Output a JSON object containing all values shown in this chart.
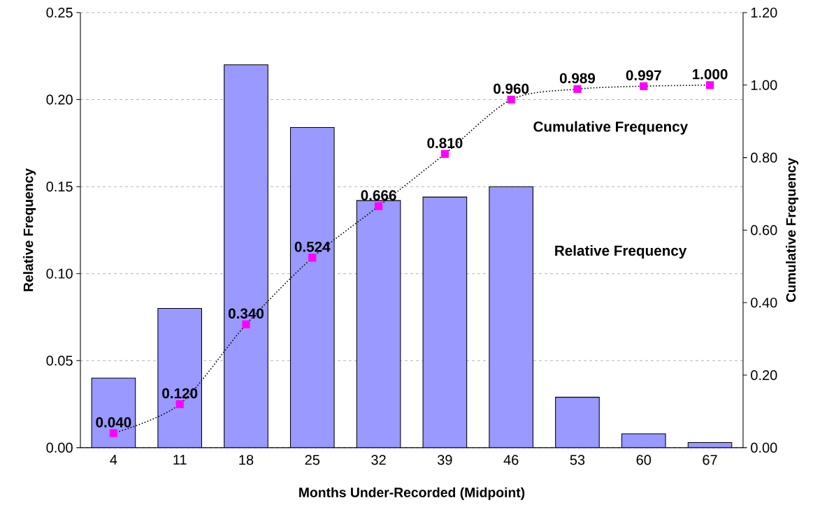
{
  "chart_data": {
    "type": "bar",
    "xlabel": "Months Under-Recorded (Midpoint)",
    "ylabel": "Relative Frequency",
    "y2label": "Cumulative Frequency",
    "categories": [
      "4",
      "11",
      "18",
      "25",
      "32",
      "39",
      "46",
      "53",
      "60",
      "67"
    ],
    "series": [
      {
        "name": "Relative Frequency",
        "color": "#9999ff",
        "values": [
          0.04,
          0.08,
          0.22,
          0.184,
          0.142,
          0.144,
          0.15,
          0.029,
          0.008,
          0.003
        ]
      },
      {
        "name": "Cumulative Frequency",
        "type": "line",
        "axis": "y2",
        "color": "#ff00ff",
        "marker": "square",
        "line_style": "dotted",
        "values": [
          0.04,
          0.12,
          0.34,
          0.524,
          0.666,
          0.81,
          0.96,
          0.989,
          0.997,
          1.0
        ],
        "value_labels": [
          "0.040",
          "0.120",
          "0.340",
          "0.524",
          "0.666",
          "0.810",
          "0.960",
          "0.989",
          "0.997",
          "1.000"
        ]
      }
    ],
    "ylim": [
      0,
      0.25
    ],
    "yticks": [
      {
        "value": 0,
        "label": "0.00"
      },
      {
        "value": 0.05,
        "label": "0.05"
      },
      {
        "value": 0.1,
        "label": "0.10"
      },
      {
        "value": 0.15,
        "label": "0.15"
      },
      {
        "value": 0.2,
        "label": "0.20"
      },
      {
        "value": 0.25,
        "label": "0.25"
      }
    ],
    "y2lim": [
      0,
      1.2
    ],
    "y2ticks": [
      {
        "value": 0,
        "label": "0.00"
      },
      {
        "value": 0.2,
        "label": "0.20"
      },
      {
        "value": 0.4,
        "label": "0.40"
      },
      {
        "value": 0.6,
        "label": "0.60"
      },
      {
        "value": 0.8,
        "label": "0.80"
      },
      {
        "value": 1.0,
        "label": "1.00"
      },
      {
        "value": 1.2,
        "label": "1.20"
      }
    ],
    "grid": "y",
    "legend": false
  }
}
